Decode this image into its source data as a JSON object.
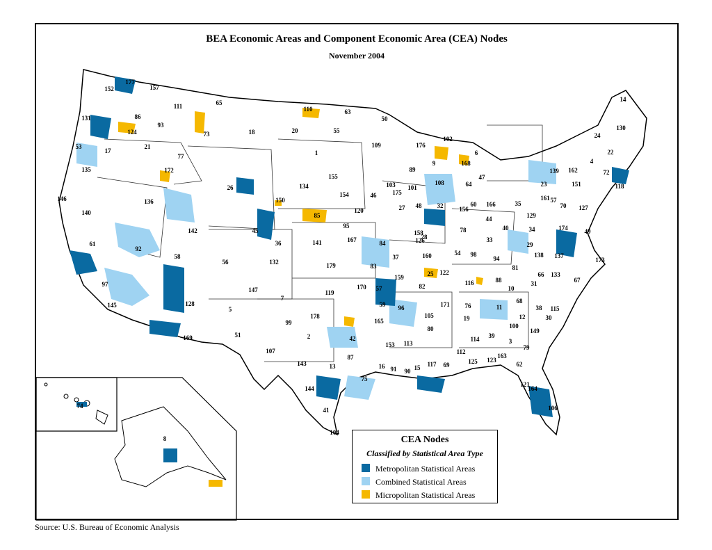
{
  "title": "BEA Economic Areas and Component Economic Area (CEA) Nodes",
  "subtitle": "November 2004",
  "source": "Source:  U.S. Bureau of Economic Analysis",
  "legend": {
    "title": "CEA Nodes",
    "subtitle": "Classified by Statistical Area Type",
    "items": [
      {
        "label": "Metropolitan Statistical Areas",
        "color": "#0a6aa1"
      },
      {
        "label": "Combined Statistical Areas",
        "color": "#9fd3f2"
      },
      {
        "label": "Micropolitan Statistical Areas",
        "color": "#f5b800"
      }
    ]
  },
  "area_labels": [
    "177",
    "157",
    "152",
    "65",
    "111",
    "131",
    "86",
    "93",
    "124",
    "73",
    "18",
    "20",
    "110",
    "63",
    "55",
    "50",
    "14",
    "130",
    "24",
    "53",
    "17",
    "21",
    "77",
    "135",
    "172",
    "26",
    "1",
    "109",
    "176",
    "102",
    "89",
    "9",
    "6",
    "168",
    "22",
    "4",
    "139",
    "162",
    "72",
    "118",
    "155",
    "103",
    "101",
    "175",
    "108",
    "47",
    "64",
    "23",
    "151",
    "146",
    "136",
    "150",
    "134",
    "154",
    "120",
    "46",
    "27",
    "48",
    "32",
    "156",
    "60",
    "166",
    "35",
    "57",
    "161",
    "70",
    "127",
    "140",
    "142",
    "45",
    "85",
    "95",
    "84",
    "126",
    "158",
    "78",
    "28",
    "44",
    "40",
    "129",
    "34",
    "174",
    "49",
    "61",
    "92",
    "58",
    "36",
    "56",
    "132",
    "141",
    "167",
    "37",
    "160",
    "54",
    "98",
    "33",
    "29",
    "138",
    "137",
    "173",
    "97",
    "128",
    "147",
    "5",
    "7",
    "179",
    "83",
    "159",
    "170",
    "57",
    "82",
    "25",
    "122",
    "94",
    "81",
    "66",
    "133",
    "67",
    "145",
    "119",
    "59",
    "96",
    "171",
    "116",
    "88",
    "10",
    "31",
    "68",
    "38",
    "115",
    "165",
    "105",
    "76",
    "11",
    "12",
    "30",
    "99",
    "178",
    "80",
    "19",
    "100",
    "169",
    "51",
    "2",
    "42",
    "153",
    "113",
    "114",
    "39",
    "3",
    "149",
    "107",
    "87",
    "16",
    "91",
    "90",
    "15",
    "117",
    "69",
    "112",
    "125",
    "123",
    "163",
    "79",
    "62",
    "143",
    "13",
    "75",
    "121",
    "144",
    "164",
    "106",
    "41",
    "104",
    "74",
    "8"
  ]
}
